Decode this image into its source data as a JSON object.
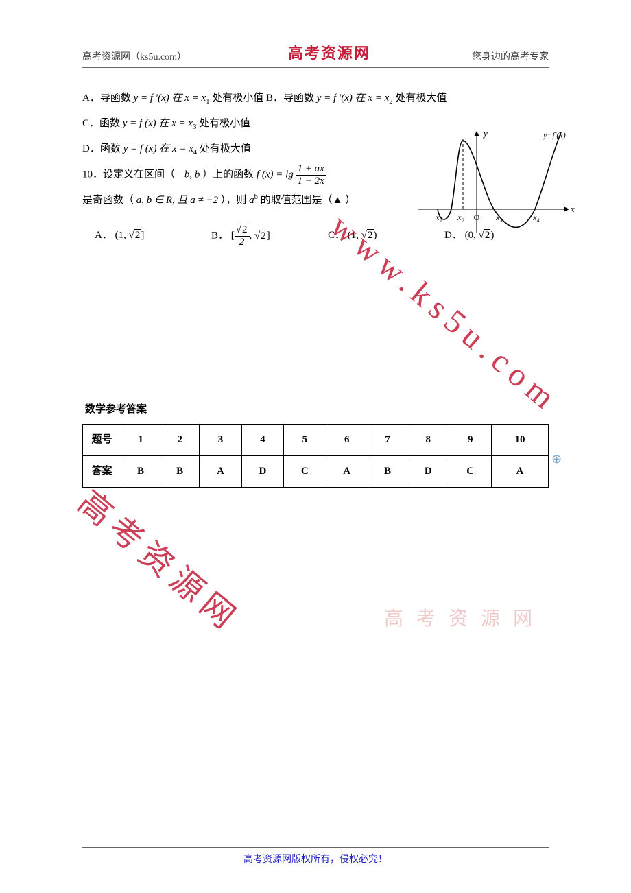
{
  "header": {
    "left": "高考资源网（ks5u.com）",
    "center": "高考资源网",
    "right": "您身边的高考专家"
  },
  "question_lines": {
    "A_part1": "A．导函数 ",
    "A_eq": "y = f ′(x)",
    "A_part2": " 在 x = x",
    "A_sub": "1",
    "A_part3": " 处有极小值",
    "B_part1": " B．导函数 ",
    "B_eq": "y = f ′(x)",
    "B_part2": " 在 x = x",
    "B_sub": "2",
    "B_part3": " 处有极大值",
    "C_part1": "C．函数 ",
    "C_eq": "y = f (x)",
    "C_part2": "在 x = x",
    "C_sub": "3",
    "C_part3": " 处有极小值",
    "D_part1": "D．函数 ",
    "D_eq": "y = f (x)",
    "D_part2": "在 x = x",
    "D_sub": "4",
    "D_part3": " 处有极大值",
    "Q10_p1": "10．设定义在区间（",
    "Q10_interval": "−b,  b",
    "Q10_p2": "）上的函数 ",
    "Q10_fx": "f (x) = lg",
    "Q10_num": "1 + ax",
    "Q10_den": "1 − 2x",
    "Q10_line2_p1": "是奇函数（",
    "Q10_line2_cond": "a, b ∈ R,  且 a ≠ −2",
    "Q10_line2_p2": "），则 ",
    "Q10_expr": "a",
    "Q10_exp_sup": "b",
    "Q10_line2_p3": " 的取值范围是（▲  ）"
  },
  "options": {
    "A_pre": "A．  (1, ",
    "A_sqrt": "2",
    "A_post": "]",
    "B_pre": "B．  [",
    "B_num_sqrt": "2",
    "B_den": "2",
    "B_mid": ", ",
    "B_sqrt2": "2",
    "B_post": "]",
    "C_pre": "C．  (1, ",
    "C_sqrt": "2",
    "C_post": ")",
    "D_pre": "D．  (0, ",
    "D_sqrt": "2",
    "D_post": ")"
  },
  "graph": {
    "label_y": "y",
    "label_x": "x",
    "label_curve": "y=f′(x)",
    "ticks": [
      "x₁",
      "x₂",
      "O",
      "x₃",
      "x₄"
    ],
    "axis_color": "#000000",
    "curve_color": "#000000",
    "dash_color": "#000000",
    "stroke_width": 1.6
  },
  "answers": {
    "title": "数学参考答案",
    "row_q_label": "题号",
    "row_a_label": "答案",
    "numbers": [
      "1",
      "2",
      "3",
      "4",
      "5",
      "6",
      "7",
      "8",
      "9",
      "10"
    ],
    "values": [
      "B",
      "B",
      "A",
      "D",
      "C",
      "A",
      "B",
      "D",
      "C",
      "A"
    ]
  },
  "watermarks": {
    "diag": "www.ks5u.com",
    "cn": "高考资源网",
    "light": "高 考 资 源 网"
  },
  "footer": "高考资源网版权所有，侵权必究！"
}
